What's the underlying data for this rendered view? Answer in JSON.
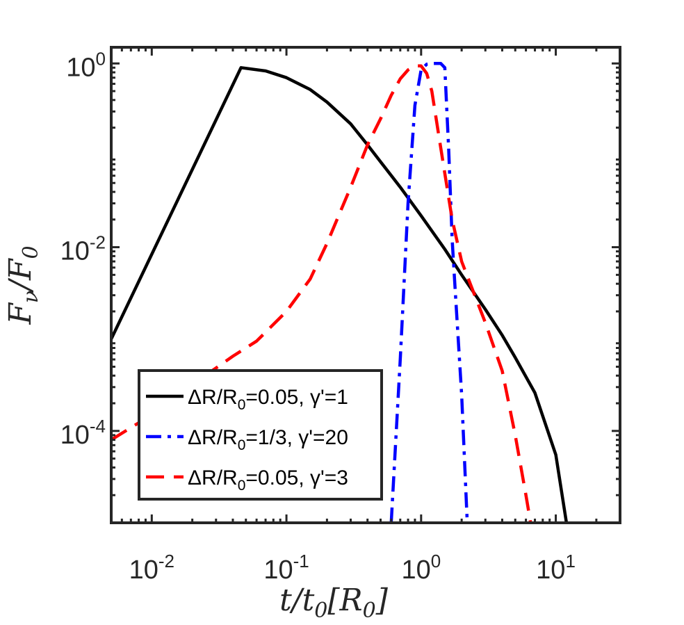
{
  "chart_data": {
    "type": "line",
    "x_scale": "log",
    "y_scale": "log",
    "xlim": [
      0.005,
      30
    ],
    "ylim": [
      1e-05,
      1.5
    ],
    "grid": false,
    "legend_position": "lower-left",
    "x_ticks": [
      {
        "value": 0.01,
        "base": "10",
        "exp": "-2"
      },
      {
        "value": 0.1,
        "base": "10",
        "exp": "-1"
      },
      {
        "value": 1,
        "base": "10",
        "exp": "0"
      },
      {
        "value": 10,
        "base": "10",
        "exp": "1"
      }
    ],
    "y_ticks": [
      {
        "value": 1,
        "base": "10",
        "exp": "0"
      },
      {
        "value": 0.01,
        "base": "10",
        "exp": "-2"
      },
      {
        "value": 0.0001,
        "base": "10",
        "exp": "-4"
      }
    ],
    "xlabel": {
      "main": "t/t",
      "sub": "0",
      "bracket_open": "[R",
      "bracket_sub": "0",
      "bracket_close": "]"
    },
    "ylabel": {
      "main": "F",
      "sub": "ν",
      "slash": "/F",
      "sub2": "0"
    },
    "series": [
      {
        "name": "ΔR/R0=0.05, γ'=1",
        "label_parts": {
          "a": "ΔR/R",
          "sub": "0",
          "b": "=0.05, γ'=1"
        },
        "color": "#000000",
        "dash": "solid",
        "points": [
          [
            0.005,
            0.001
          ],
          [
            0.046,
            0.9
          ],
          [
            0.07,
            0.83
          ],
          [
            0.1,
            0.7
          ],
          [
            0.15,
            0.52
          ],
          [
            0.2,
            0.38
          ],
          [
            0.3,
            0.22
          ],
          [
            0.4,
            0.13
          ],
          [
            0.5,
            0.085
          ],
          [
            0.7,
            0.045
          ],
          [
            1.0,
            0.022
          ],
          [
            1.5,
            0.0095
          ],
          [
            2.0,
            0.005
          ],
          [
            3.0,
            0.0021
          ],
          [
            4.0,
            0.0011
          ],
          [
            5.0,
            0.00063
          ],
          [
            7.0,
            0.00026
          ],
          [
            10.0,
            5.5e-05
          ],
          [
            12.0,
            1e-05
          ]
        ]
      },
      {
        "name": "ΔR/R0=1/3, γ'=20",
        "label_parts": {
          "a": "ΔR/R",
          "sub": "0",
          "b": "=1/3, γ'=20"
        },
        "color": "#0000ff",
        "dash": "dashdot",
        "points": [
          [
            0.6,
            1e-05
          ],
          [
            0.7,
            0.0006
          ],
          [
            0.8,
            0.03
          ],
          [
            0.9,
            0.35
          ],
          [
            1.0,
            0.85
          ],
          [
            1.1,
            0.98
          ],
          [
            1.2,
            1.0
          ],
          [
            1.4,
            1.0
          ],
          [
            1.5,
            0.9
          ],
          [
            1.6,
            0.12
          ],
          [
            1.7,
            0.012
          ],
          [
            1.8,
            0.003
          ],
          [
            2.0,
            0.00025
          ],
          [
            2.2,
            1e-05
          ]
        ]
      },
      {
        "name": "ΔR/R0=0.05, γ'=3",
        "label_parts": {
          "a": "ΔR/R",
          "sub": "0",
          "b": "=0.05, γ'=3"
        },
        "color": "#ff0000",
        "dash": "dashed",
        "points": [
          [
            0.005,
            8e-05
          ],
          [
            0.01,
            0.00015
          ],
          [
            0.02,
            0.00032
          ],
          [
            0.04,
            0.00065
          ],
          [
            0.06,
            0.00095
          ],
          [
            0.1,
            0.002
          ],
          [
            0.15,
            0.0045
          ],
          [
            0.2,
            0.011
          ],
          [
            0.3,
            0.045
          ],
          [
            0.4,
            0.13
          ],
          [
            0.5,
            0.25
          ],
          [
            0.6,
            0.45
          ],
          [
            0.7,
            0.68
          ],
          [
            0.8,
            0.85
          ],
          [
            0.9,
            0.94
          ],
          [
            1.0,
            0.94
          ],
          [
            1.1,
            0.78
          ],
          [
            1.2,
            0.5
          ],
          [
            1.4,
            0.12
          ],
          [
            1.7,
            0.02
          ],
          [
            2.0,
            0.007
          ],
          [
            2.5,
            0.003
          ],
          [
            3.0,
            0.0015
          ],
          [
            4.0,
            0.00045
          ],
          [
            5.0,
            9e-05
          ],
          [
            6.0,
            2e-05
          ],
          [
            6.5,
            1e-05
          ]
        ]
      }
    ]
  }
}
